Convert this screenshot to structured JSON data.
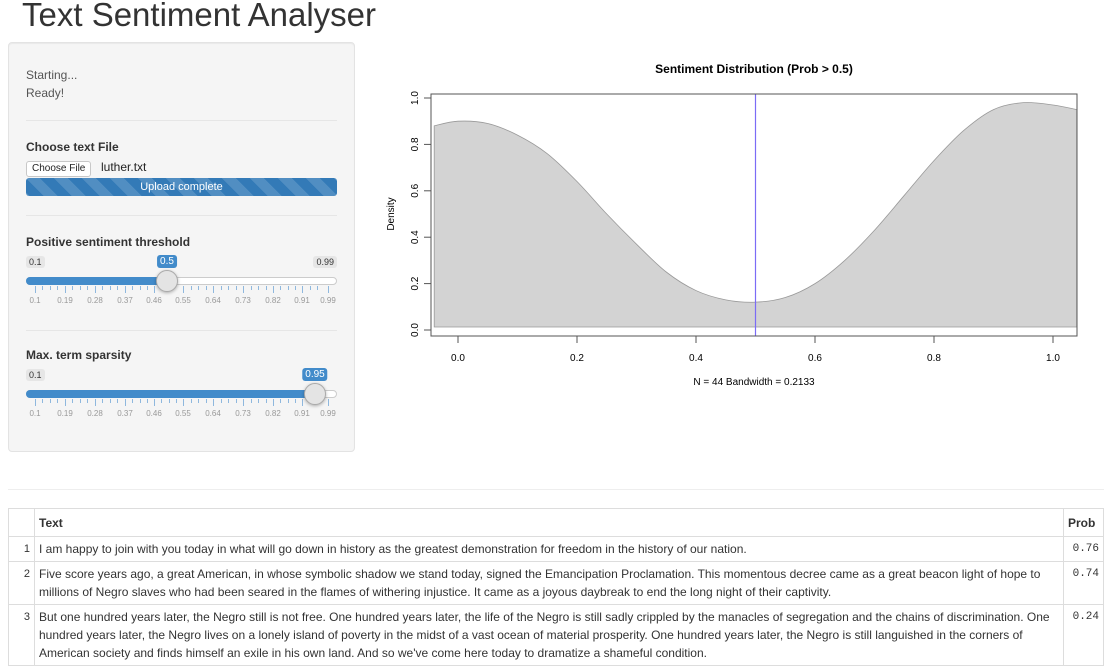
{
  "app": {
    "title": "Text Sentiment Analyser"
  },
  "sidebar": {
    "status_lines": [
      "Starting...",
      "Ready!"
    ],
    "file_input": {
      "label": "Choose text File",
      "button_label": "Choose File",
      "file_name": "luther.txt",
      "progress_label": "Upload complete",
      "progress_pct": 100
    },
    "threshold_slider": {
      "label": "Positive sentiment threshold",
      "min": "0.1",
      "max": "0.99",
      "value": "0.5",
      "grid_labels": [
        "0.1",
        "0.19",
        "0.28",
        "0.37",
        "0.46",
        "0.55",
        "0.64",
        "0.73",
        "0.82",
        "0.91",
        "0.99"
      ]
    },
    "sparsity_slider": {
      "label": "Max. term sparsity",
      "min": "0.1",
      "max": "0.99",
      "value": "0.95",
      "grid_labels": [
        "0.1",
        "0.19",
        "0.28",
        "0.37",
        "0.46",
        "0.55",
        "0.64",
        "0.73",
        "0.82",
        "0.91",
        "0.99"
      ]
    }
  },
  "chart_data": {
    "type": "area",
    "title": "Sentiment Distribution (Prob > 0.5)",
    "xlabel": "N = 44   Bandwidth = 0.2133",
    "ylabel": "Density",
    "x_ticks": [
      "0.0",
      "0.2",
      "0.4",
      "0.6",
      "0.8",
      "1.0"
    ],
    "y_ticks": [
      "0.0",
      "0.2",
      "0.4",
      "0.6",
      "0.8",
      "1.0"
    ],
    "xlim": [
      -0.04,
      1.04
    ],
    "ylim": [
      0.0,
      1.0
    ],
    "grid": false,
    "fill_color": "#d3d3d3",
    "vline": {
      "x": 0.5,
      "color": "#7b6cf6"
    },
    "x": [
      -0.04,
      0.0,
      0.05,
      0.1,
      0.15,
      0.2,
      0.25,
      0.3,
      0.35,
      0.4,
      0.45,
      0.5,
      0.55,
      0.6,
      0.65,
      0.7,
      0.75,
      0.8,
      0.85,
      0.9,
      0.95,
      1.0,
      1.04
    ],
    "y": [
      0.88,
      0.9,
      0.89,
      0.84,
      0.76,
      0.64,
      0.5,
      0.37,
      0.25,
      0.17,
      0.13,
      0.12,
      0.14,
      0.2,
      0.3,
      0.43,
      0.58,
      0.73,
      0.86,
      0.95,
      0.98,
      0.97,
      0.95
    ]
  },
  "table": {
    "columns": [
      "",
      "Text",
      "Prob"
    ],
    "rows": [
      {
        "index": "1",
        "text": "I am happy to join with you today in what will go down in history as the greatest demonstration for freedom in the history of our nation.",
        "prob": "0.76"
      },
      {
        "index": "2",
        "text": "Five score years ago, a great American, in whose symbolic shadow we stand today, signed the Emancipation Proclamation. This momentous decree came as a great beacon light of hope to millions of Negro slaves who had been seared in the flames of withering injustice. It came as a joyous daybreak to end the long night of their captivity.",
        "prob": "0.74"
      },
      {
        "index": "3",
        "text": "But one hundred years later, the Negro still is not free. One hundred years later, the life of the Negro is still sadly crippled by the manacles of segregation and the chains of discrimination. One hundred years later, the Negro lives on a lonely island of poverty in the midst of a vast ocean of material prosperity. One hundred years later, the Negro is still languished in the corners of American society and finds himself an exile in his own land. And so we've come here today to dramatize a shameful condition.",
        "prob": "0.24"
      }
    ]
  }
}
